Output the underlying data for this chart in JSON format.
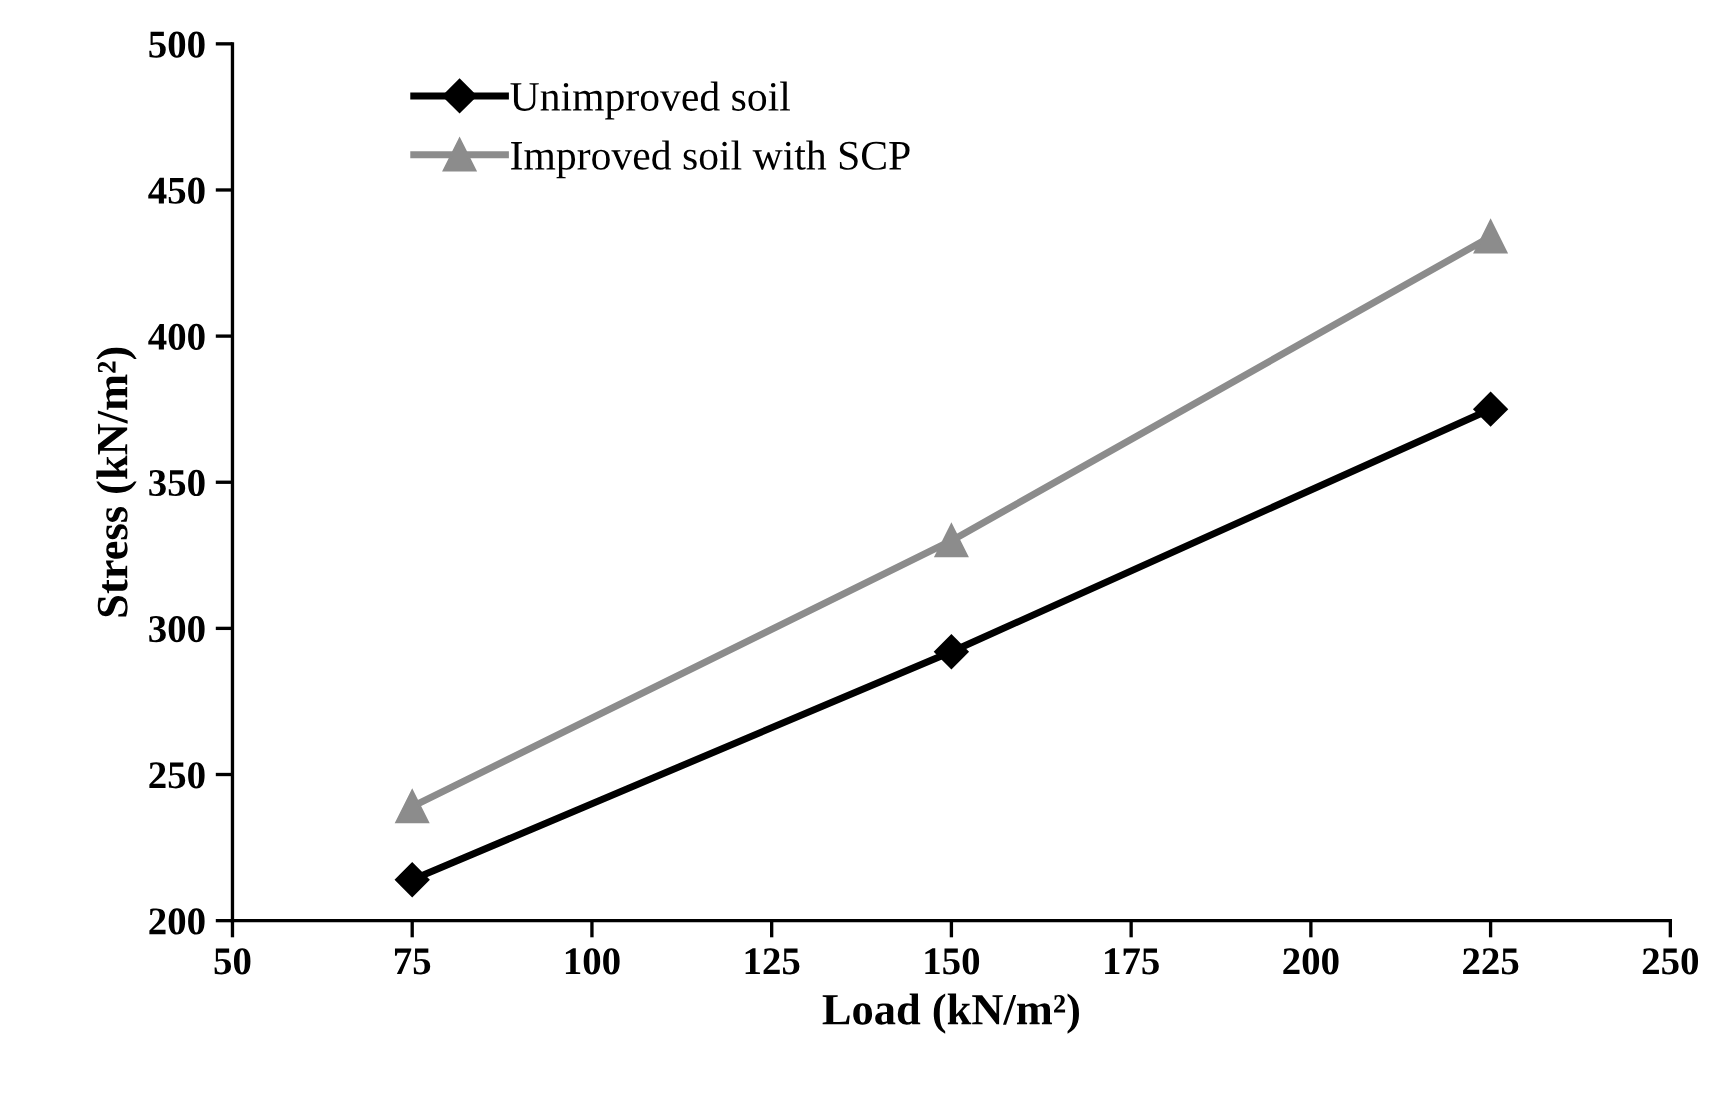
{
  "chart_data": {
    "type": "line",
    "xlabel": "Load (kN/m²)",
    "ylabel": "Stress (kN/m²)",
    "x": [
      75,
      150,
      225
    ],
    "series": [
      {
        "name": "Unimproved soil",
        "color": "#000000",
        "marker": "diamond",
        "values": [
          214,
          292,
          375
        ]
      },
      {
        "name": "Improved soil with SCP",
        "color": "#8c8c8c",
        "marker": "triangle",
        "values": [
          239,
          330,
          434
        ]
      }
    ],
    "xlim": [
      50,
      250
    ],
    "xticks": [
      50,
      75,
      100,
      125,
      150,
      175,
      200,
      225,
      250
    ],
    "ylim": [
      200,
      500
    ],
    "yticks": [
      200,
      250,
      300,
      350,
      400,
      450,
      500
    ],
    "grid": false,
    "legend": "top left",
    "line_style": "solid"
  }
}
